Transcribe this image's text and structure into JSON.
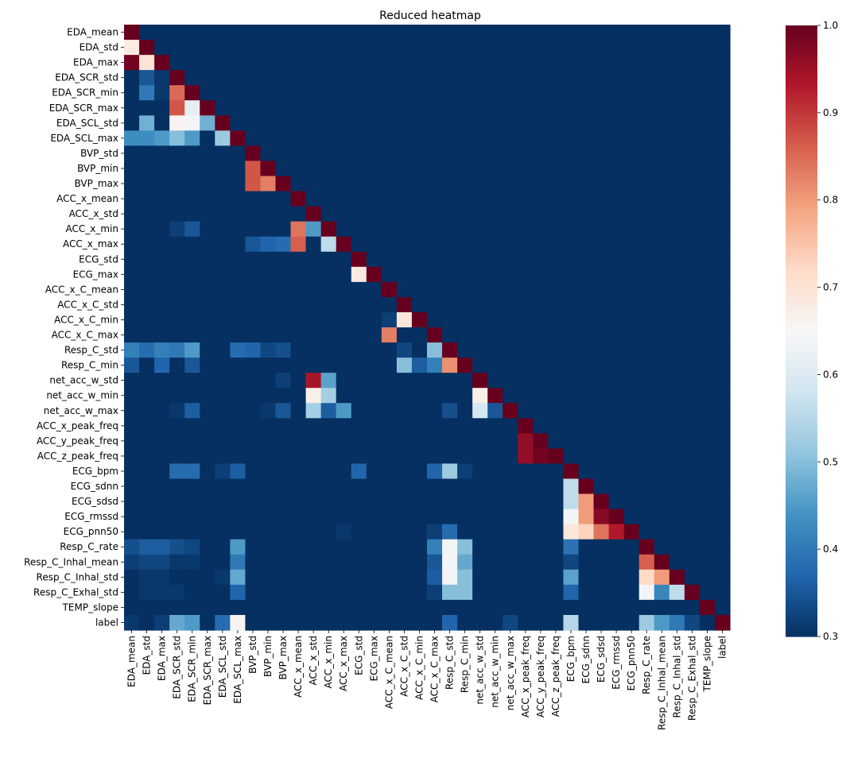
{
  "chart_data": {
    "type": "heatmap",
    "title": "Reduced heatmap",
    "colormap": "RdBu_r",
    "vmin": 0.3,
    "vmax": 1.0,
    "colorbar_ticks": [
      "1.0",
      "0.9",
      "0.8",
      "0.7",
      "0.6",
      "0.5",
      "0.4",
      "0.3"
    ],
    "colorbar_tick_values": [
      1.0,
      0.9,
      0.8,
      0.7,
      0.6,
      0.5,
      0.4,
      0.3
    ],
    "mask": "upper-triangle shown as minimum color; diagonal = 1.0",
    "labels": [
      "EDA_mean",
      "EDA_std",
      "EDA_max",
      "EDA_SCR_std",
      "EDA_SCR_min",
      "EDA_SCR_max",
      "EDA_SCL_std",
      "EDA_SCL_max",
      "BVP_std",
      "BVP_min",
      "BVP_max",
      "ACC_x_mean",
      "ACC_x_std",
      "ACC_x_min",
      "ACC_x_max",
      "ECG_std",
      "ECG_max",
      "ACC_x_C_mean",
      "ACC_x_C_std",
      "ACC_x_C_min",
      "ACC_x_C_max",
      "Resp_C_std",
      "Resp_C_min",
      "net_acc_w_std",
      "net_acc_w_min",
      "net_acc_w_max",
      "ACC_x_peak_freq",
      "ACC_y_peak_freq",
      "ACC_z_peak_freq",
      "ECG_bpm",
      "ECG_sdnn",
      "ECG_sdsd",
      "ECG_rmssd",
      "ECG_pnn50",
      "Resp_C_rate",
      "Resp_C_Inhal_mean",
      "Resp_C_Inhal_std",
      "Resp_C_Exhal_std",
      "TEMP_slope",
      "label"
    ],
    "values": [
      [
        1.0
      ],
      [
        0.68,
        1.0
      ],
      [
        0.99,
        0.7,
        1.0
      ],
      [
        0.3,
        0.35,
        0.31,
        1.0
      ],
      [
        0.3,
        0.4,
        0.31,
        0.85,
        1.0
      ],
      [
        0.3,
        0.3,
        0.3,
        0.87,
        0.62,
        1.0
      ],
      [
        0.3,
        0.48,
        0.3,
        0.66,
        0.64,
        0.48,
        1.0
      ],
      [
        0.43,
        0.43,
        0.45,
        0.5,
        0.45,
        0.3,
        0.52,
        1.0
      ],
      [
        0.3,
        0.3,
        0.3,
        0.3,
        0.3,
        0.3,
        0.3,
        0.3,
        1.0
      ],
      [
        0.3,
        0.3,
        0.3,
        0.3,
        0.3,
        0.3,
        0.3,
        0.3,
        0.87,
        1.0
      ],
      [
        0.3,
        0.3,
        0.3,
        0.3,
        0.3,
        0.3,
        0.3,
        0.3,
        0.87,
        0.83,
        1.0
      ],
      [
        0.3,
        0.3,
        0.3,
        0.3,
        0.3,
        0.3,
        0.3,
        0.3,
        0.3,
        0.3,
        0.3,
        1.0
      ],
      [
        0.3,
        0.3,
        0.3,
        0.3,
        0.3,
        0.3,
        0.3,
        0.3,
        0.3,
        0.3,
        0.3,
        0.3,
        1.0
      ],
      [
        0.3,
        0.3,
        0.3,
        0.32,
        0.35,
        0.3,
        0.3,
        0.3,
        0.3,
        0.3,
        0.3,
        0.84,
        0.45,
        1.0
      ],
      [
        0.3,
        0.3,
        0.3,
        0.3,
        0.3,
        0.3,
        0.3,
        0.3,
        0.35,
        0.37,
        0.38,
        0.86,
        0.3,
        0.56,
        1.0
      ],
      [
        0.3,
        0.3,
        0.3,
        0.3,
        0.3,
        0.3,
        0.3,
        0.3,
        0.3,
        0.3,
        0.3,
        0.3,
        0.3,
        0.3,
        0.3,
        1.0
      ],
      [
        0.3,
        0.3,
        0.3,
        0.3,
        0.3,
        0.3,
        0.3,
        0.3,
        0.3,
        0.3,
        0.3,
        0.3,
        0.3,
        0.3,
        0.3,
        0.68,
        1.0
      ],
      [
        0.3,
        0.3,
        0.3,
        0.3,
        0.3,
        0.3,
        0.3,
        0.3,
        0.3,
        0.3,
        0.3,
        0.3,
        0.3,
        0.3,
        0.3,
        0.3,
        0.3,
        1.0
      ],
      [
        0.3,
        0.3,
        0.3,
        0.3,
        0.3,
        0.3,
        0.3,
        0.3,
        0.3,
        0.3,
        0.3,
        0.3,
        0.3,
        0.3,
        0.3,
        0.3,
        0.3,
        0.3,
        1.0
      ],
      [
        0.3,
        0.3,
        0.3,
        0.3,
        0.3,
        0.3,
        0.3,
        0.3,
        0.3,
        0.3,
        0.3,
        0.3,
        0.3,
        0.3,
        0.3,
        0.3,
        0.3,
        0.32,
        0.69,
        1.0
      ],
      [
        0.3,
        0.3,
        0.3,
        0.3,
        0.3,
        0.3,
        0.3,
        0.3,
        0.3,
        0.3,
        0.3,
        0.3,
        0.3,
        0.3,
        0.3,
        0.3,
        0.3,
        0.83,
        0.3,
        0.3,
        1.0
      ],
      [
        0.41,
        0.38,
        0.41,
        0.4,
        0.45,
        0.3,
        0.3,
        0.38,
        0.37,
        0.33,
        0.34,
        0.3,
        0.3,
        0.3,
        0.3,
        0.3,
        0.3,
        0.3,
        0.33,
        0.3,
        0.5,
        1.0
      ],
      [
        0.35,
        0.3,
        0.37,
        0.3,
        0.35,
        0.3,
        0.3,
        0.3,
        0.3,
        0.3,
        0.3,
        0.3,
        0.3,
        0.3,
        0.3,
        0.3,
        0.3,
        0.3,
        0.5,
        0.36,
        0.41,
        0.81,
        1.0
      ],
      [
        0.3,
        0.3,
        0.3,
        0.3,
        0.3,
        0.3,
        0.3,
        0.3,
        0.3,
        0.3,
        0.32,
        0.3,
        0.94,
        0.46,
        0.3,
        0.3,
        0.3,
        0.3,
        0.3,
        0.3,
        0.3,
        0.3,
        0.3,
        1.0
      ],
      [
        0.3,
        0.3,
        0.3,
        0.3,
        0.3,
        0.3,
        0.3,
        0.3,
        0.3,
        0.3,
        0.3,
        0.3,
        0.67,
        0.53,
        0.3,
        0.3,
        0.3,
        0.3,
        0.3,
        0.3,
        0.3,
        0.3,
        0.3,
        0.67,
        1.0
      ],
      [
        0.3,
        0.3,
        0.3,
        0.31,
        0.36,
        0.3,
        0.3,
        0.3,
        0.3,
        0.31,
        0.35,
        0.3,
        0.53,
        0.36,
        0.45,
        0.3,
        0.3,
        0.3,
        0.3,
        0.3,
        0.3,
        0.34,
        0.3,
        0.59,
        0.35,
        1.0
      ],
      [
        0.3,
        0.3,
        0.3,
        0.3,
        0.3,
        0.3,
        0.3,
        0.3,
        0.3,
        0.3,
        0.3,
        0.3,
        0.3,
        0.3,
        0.3,
        0.3,
        0.3,
        0.3,
        0.3,
        0.3,
        0.3,
        0.3,
        0.3,
        0.3,
        0.3,
        0.3,
        1.0
      ],
      [
        0.3,
        0.3,
        0.3,
        0.3,
        0.3,
        0.3,
        0.3,
        0.3,
        0.3,
        0.3,
        0.3,
        0.3,
        0.3,
        0.3,
        0.3,
        0.3,
        0.3,
        0.3,
        0.3,
        0.3,
        0.3,
        0.3,
        0.3,
        0.3,
        0.3,
        0.3,
        0.96,
        1.0
      ],
      [
        0.3,
        0.3,
        0.3,
        0.3,
        0.3,
        0.3,
        0.3,
        0.3,
        0.3,
        0.3,
        0.3,
        0.3,
        0.3,
        0.3,
        0.3,
        0.3,
        0.3,
        0.3,
        0.3,
        0.3,
        0.3,
        0.3,
        0.3,
        0.3,
        0.3,
        0.3,
        0.96,
        0.99,
        1.0
      ],
      [
        0.3,
        0.3,
        0.3,
        0.38,
        0.38,
        0.3,
        0.32,
        0.36,
        0.3,
        0.3,
        0.3,
        0.3,
        0.3,
        0.3,
        0.3,
        0.37,
        0.3,
        0.3,
        0.3,
        0.3,
        0.37,
        0.52,
        0.32,
        0.3,
        0.3,
        0.3,
        0.3,
        0.3,
        0.3,
        1.0
      ],
      [
        0.3,
        0.3,
        0.3,
        0.3,
        0.3,
        0.3,
        0.3,
        0.3,
        0.3,
        0.3,
        0.3,
        0.3,
        0.3,
        0.3,
        0.3,
        0.3,
        0.3,
        0.3,
        0.3,
        0.3,
        0.3,
        0.3,
        0.3,
        0.3,
        0.3,
        0.3,
        0.3,
        0.3,
        0.3,
        0.56,
        1.0
      ],
      [
        0.3,
        0.3,
        0.3,
        0.3,
        0.3,
        0.3,
        0.3,
        0.3,
        0.3,
        0.3,
        0.3,
        0.3,
        0.3,
        0.3,
        0.3,
        0.3,
        0.3,
        0.3,
        0.3,
        0.3,
        0.3,
        0.3,
        0.3,
        0.3,
        0.3,
        0.3,
        0.3,
        0.3,
        0.3,
        0.56,
        0.8,
        1.0
      ],
      [
        0.3,
        0.3,
        0.3,
        0.3,
        0.3,
        0.3,
        0.3,
        0.3,
        0.3,
        0.3,
        0.3,
        0.3,
        0.3,
        0.3,
        0.3,
        0.3,
        0.3,
        0.3,
        0.3,
        0.3,
        0.3,
        0.3,
        0.3,
        0.3,
        0.3,
        0.3,
        0.3,
        0.3,
        0.3,
        0.64,
        0.8,
        0.97,
        1.0
      ],
      [
        0.3,
        0.3,
        0.3,
        0.3,
        0.3,
        0.3,
        0.3,
        0.3,
        0.3,
        0.3,
        0.3,
        0.3,
        0.3,
        0.3,
        0.31,
        0.3,
        0.3,
        0.3,
        0.3,
        0.3,
        0.32,
        0.38,
        0.3,
        0.3,
        0.3,
        0.3,
        0.3,
        0.3,
        0.3,
        0.69,
        0.73,
        0.84,
        0.93,
        1.0
      ],
      [
        0.34,
        0.36,
        0.36,
        0.34,
        0.33,
        0.3,
        0.3,
        0.45,
        0.3,
        0.3,
        0.3,
        0.3,
        0.3,
        0.3,
        0.3,
        0.3,
        0.3,
        0.3,
        0.3,
        0.3,
        0.41,
        0.64,
        0.5,
        0.3,
        0.3,
        0.3,
        0.3,
        0.3,
        0.3,
        0.39,
        0.3,
        0.3,
        0.3,
        0.3,
        1.0
      ],
      [
        0.32,
        0.33,
        0.33,
        0.31,
        0.31,
        0.3,
        0.3,
        0.4,
        0.3,
        0.3,
        0.3,
        0.3,
        0.3,
        0.3,
        0.3,
        0.3,
        0.3,
        0.3,
        0.3,
        0.3,
        0.35,
        0.64,
        0.47,
        0.3,
        0.3,
        0.3,
        0.3,
        0.3,
        0.3,
        0.33,
        0.3,
        0.3,
        0.3,
        0.3,
        0.86,
        1.0
      ],
      [
        0.3,
        0.31,
        0.31,
        0.3,
        0.3,
        0.3,
        0.31,
        0.47,
        0.3,
        0.3,
        0.3,
        0.3,
        0.3,
        0.3,
        0.3,
        0.3,
        0.3,
        0.3,
        0.3,
        0.3,
        0.36,
        0.64,
        0.5,
        0.3,
        0.3,
        0.3,
        0.3,
        0.3,
        0.3,
        0.46,
        0.3,
        0.3,
        0.3,
        0.3,
        0.72,
        0.8,
        1.0
      ],
      [
        0.3,
        0.31,
        0.31,
        0.31,
        0.3,
        0.3,
        0.3,
        0.37,
        0.3,
        0.3,
        0.3,
        0.3,
        0.3,
        0.3,
        0.3,
        0.3,
        0.3,
        0.3,
        0.3,
        0.3,
        0.32,
        0.5,
        0.5,
        0.3,
        0.3,
        0.3,
        0.3,
        0.3,
        0.3,
        0.37,
        0.3,
        0.3,
        0.3,
        0.3,
        0.64,
        0.42,
        0.56,
        1.0
      ],
      [
        0.3,
        0.3,
        0.3,
        0.3,
        0.3,
        0.3,
        0.3,
        0.3,
        0.3,
        0.3,
        0.3,
        0.3,
        0.3,
        0.3,
        0.3,
        0.3,
        0.3,
        0.3,
        0.3,
        0.3,
        0.3,
        0.3,
        0.3,
        0.3,
        0.3,
        0.3,
        0.3,
        0.3,
        0.3,
        0.3,
        0.3,
        0.3,
        0.3,
        0.3,
        0.3,
        0.3,
        0.3,
        0.3,
        1.0
      ],
      [
        0.31,
        0.3,
        0.32,
        0.47,
        0.45,
        0.3,
        0.38,
        0.66,
        0.3,
        0.3,
        0.3,
        0.3,
        0.3,
        0.3,
        0.3,
        0.3,
        0.3,
        0.3,
        0.3,
        0.3,
        0.3,
        0.37,
        0.3,
        0.3,
        0.3,
        0.33,
        0.3,
        0.3,
        0.3,
        0.55,
        0.3,
        0.3,
        0.3,
        0.3,
        0.52,
        0.45,
        0.4,
        0.33,
        0.3,
        1.0
      ]
    ]
  }
}
